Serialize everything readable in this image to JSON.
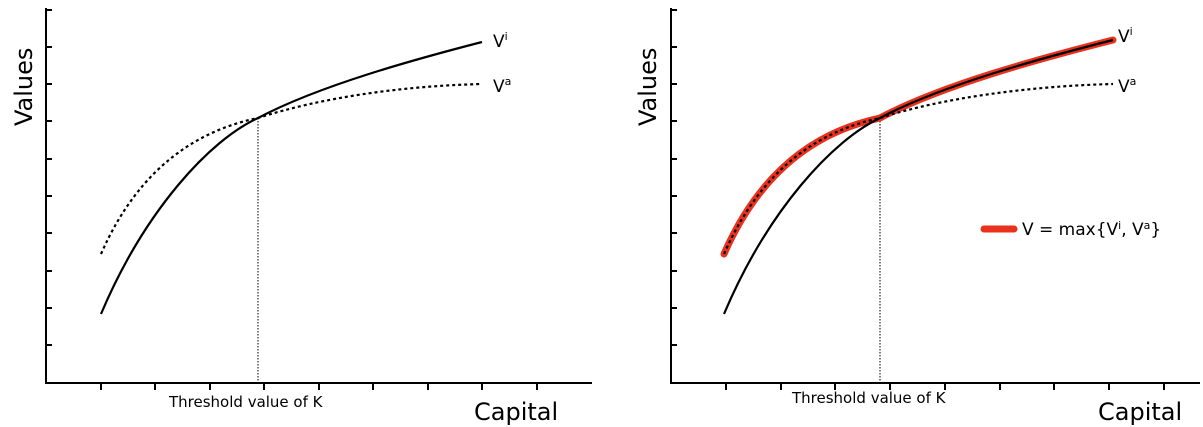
{
  "panels": [
    {
      "ylabel": "Values",
      "xlabel": "Capital",
      "threshold_label": "Threshold value of K",
      "curve_i_label": "V",
      "curve_i_sup": "i",
      "curve_a_label": "V",
      "curve_a_sup": "a"
    },
    {
      "ylabel": "Values",
      "xlabel": "Capital",
      "threshold_label": "Threshold value of K",
      "curve_i_label": "V",
      "curve_i_sup": "i",
      "curve_a_label": "V",
      "curve_a_sup": "a",
      "legend": {
        "prefix": "V = max{V",
        "sup1": "i",
        "mid": ", V",
        "sup2": "a",
        "suffix": "}"
      }
    }
  ],
  "colors": {
    "axis": "#000000",
    "curve": "#000000",
    "highlight": "#e8321e"
  }
}
